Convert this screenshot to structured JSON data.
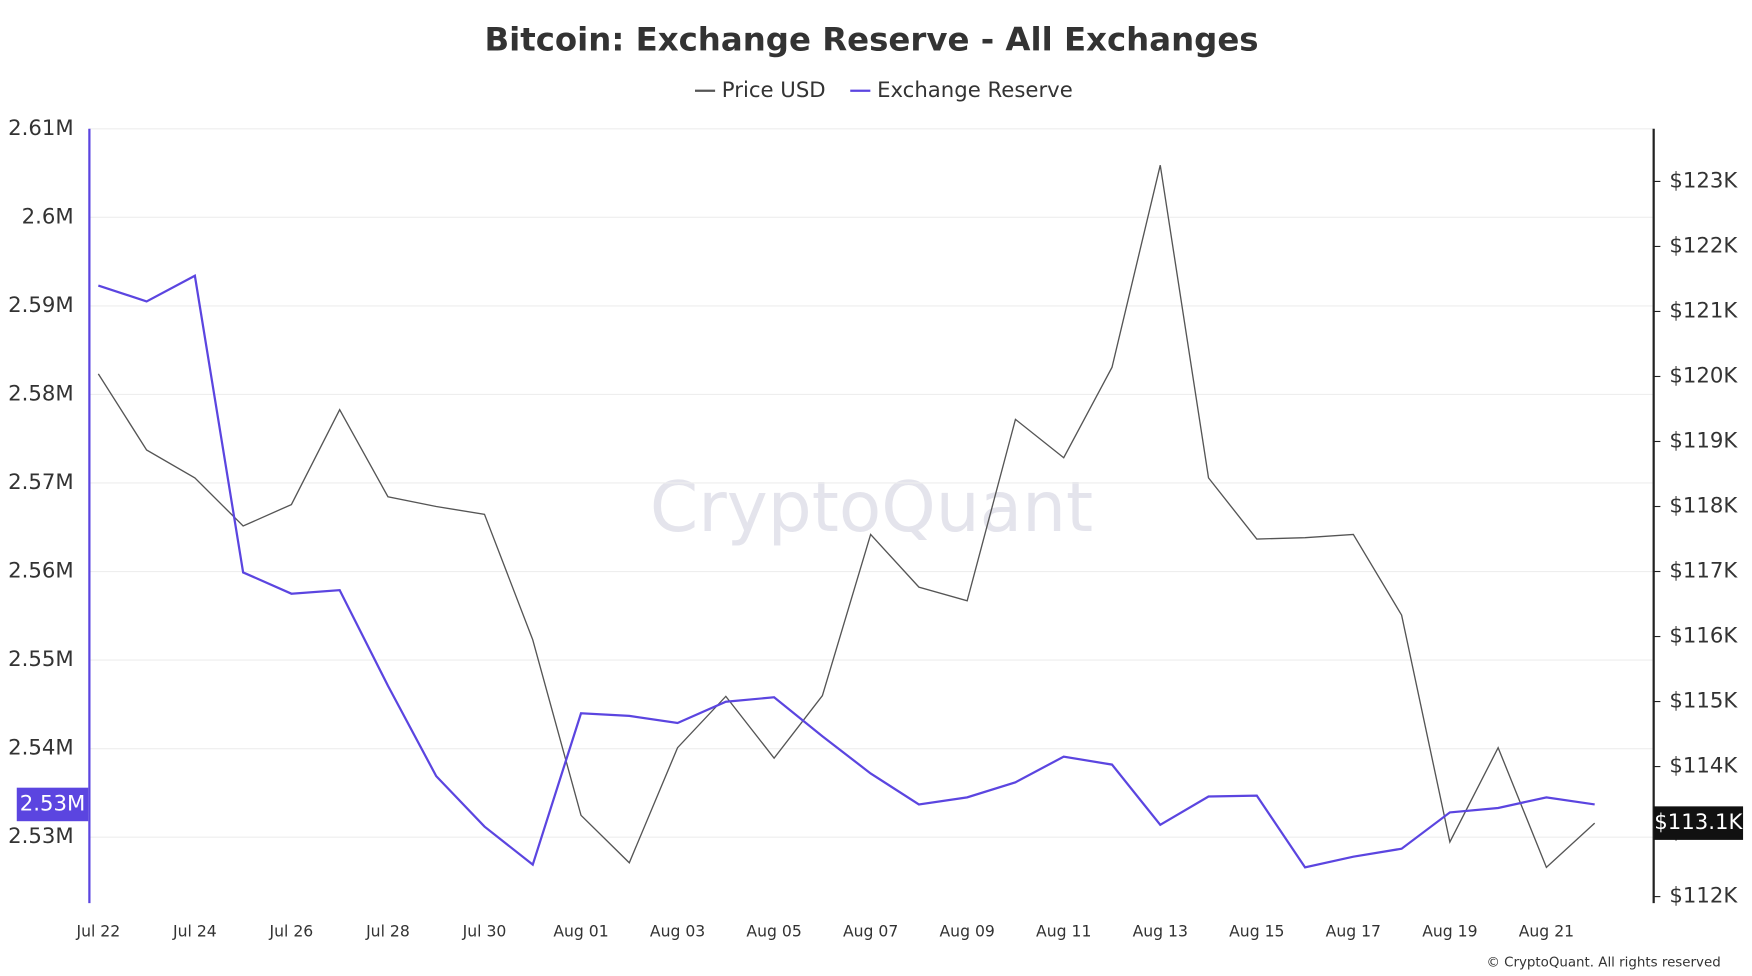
{
  "chart_data": {
    "type": "line",
    "title": "Bitcoin: Exchange Reserve - All Exchanges",
    "watermark": "CryptoQuant",
    "credit": "© CryptoQuant. All rights reserved",
    "categories": [
      "Jul 22",
      null,
      "Jul 24",
      null,
      "Jul 26",
      null,
      "Jul 28",
      null,
      "Jul 30",
      null,
      "Aug 01",
      null,
      "Aug 03",
      null,
      "Aug 05",
      null,
      "Aug 07",
      null,
      "Aug 09",
      null,
      "Aug 11",
      null,
      "Aug 13",
      null,
      "Aug 15",
      null,
      "Aug 17",
      null,
      "Aug 19",
      null,
      "Aug 21",
      null
    ],
    "series": [
      {
        "name": "Price USD",
        "color": "#555555",
        "axis": "y2",
        "values": [
          120040,
          118870,
          118440,
          117700,
          118030,
          119490,
          118150,
          118000,
          117880,
          115950,
          113250,
          112520,
          114290,
          115080,
          114130,
          115090,
          117570,
          116760,
          116550,
          119340,
          118750,
          120140,
          123250,
          118440,
          117500,
          117520,
          117570,
          116330,
          112840,
          114290,
          112450,
          113130
        ],
        "value_labels": [
          null,
          null,
          null,
          null,
          null,
          null,
          null,
          null,
          null,
          null,
          null,
          null,
          null,
          null,
          null,
          null,
          null,
          null,
          null,
          null,
          null,
          null,
          null,
          null,
          null,
          null,
          null,
          null,
          null,
          null,
          null,
          "$113.1K"
        ]
      },
      {
        "name": "Exchange Reserve",
        "color": "#5b45e0",
        "values": [
          2592300,
          2590500,
          2593400,
          2559900,
          2557500,
          2557900,
          2547100,
          2536900,
          2531200,
          2526900,
          2544000,
          2543700,
          2542900,
          2545300,
          2545800,
          2541400,
          2537200,
          2533700,
          2534500,
          2536200,
          2539100,
          2538200,
          2531400,
          2534600,
          2534700,
          2526600,
          2527800,
          2528700,
          2532800,
          2533300,
          2534500,
          2533700
        ],
        "value_labels": [
          null,
          null,
          null,
          null,
          null,
          null,
          null,
          null,
          null,
          null,
          null,
          null,
          null,
          null,
          null,
          null,
          null,
          null,
          null,
          null,
          null,
          null,
          null,
          null,
          null,
          null,
          null,
          null,
          null,
          null,
          null,
          "2.53M"
        ]
      }
    ],
    "ylim": [
      2522560,
      2610000
    ],
    "yticks": [
      {
        "value": 2530000,
        "label": "2.53M"
      },
      {
        "value": 2540000,
        "label": "2.54M"
      },
      {
        "value": 2550000,
        "label": "2.55M"
      },
      {
        "value": 2560000,
        "label": "2.56M"
      },
      {
        "value": 2570000,
        "label": "2.57M"
      },
      {
        "value": 2580000,
        "label": "2.58M"
      },
      {
        "value": 2590000,
        "label": "2.59M"
      },
      {
        "value": 2600000,
        "label": "2.6M"
      },
      {
        "value": 2610000,
        "label": "2.61M"
      }
    ],
    "y2lim": [
      111900,
      123810
    ],
    "y2ticks": [
      {
        "value": 112000,
        "label": "$112K"
      },
      {
        "value": 113000,
        "label": "$113K"
      },
      {
        "value": 114000,
        "label": "$114K"
      },
      {
        "value": 115000,
        "label": "$115K"
      },
      {
        "value": 116000,
        "label": "$116K"
      },
      {
        "value": 117000,
        "label": "$117K"
      },
      {
        "value": 118000,
        "label": "$118K"
      },
      {
        "value": 119000,
        "label": "$119K"
      },
      {
        "value": 120000,
        "label": "$120K"
      },
      {
        "value": 121000,
        "label": "$121K"
      },
      {
        "value": 122000,
        "label": "$122K"
      },
      {
        "value": 123000,
        "label": "$123K"
      }
    ],
    "grid": true
  }
}
